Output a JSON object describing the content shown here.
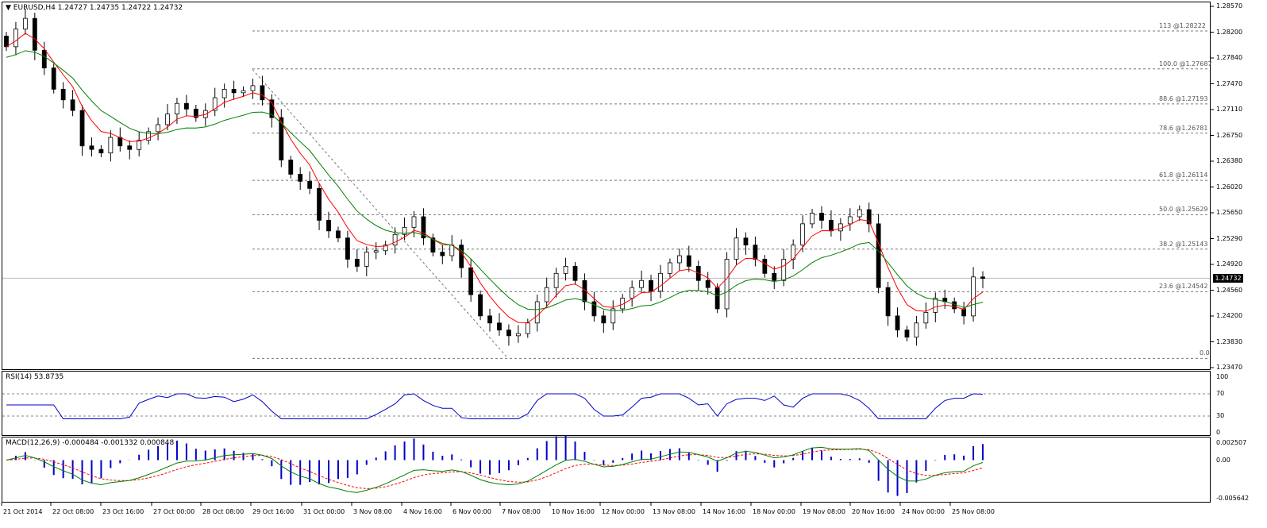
{
  "main": {
    "title": "EURUSD,H4",
    "ohlc": "1.24727 1.24735 1.24722 1.24732",
    "current_price": "1.24732",
    "y_ticks": [
      "1.28570",
      "1.28200",
      "1.27840",
      "1.27470",
      "1.27110",
      "1.26750",
      "1.26380",
      "1.26020",
      "1.25650",
      "1.25290",
      "1.24920",
      "1.24560",
      "1.24200",
      "1.23830",
      "1.23470"
    ],
    "fib_levels": [
      {
        "ratio": "113",
        "price": "@1.28222"
      },
      {
        "ratio": "100.0",
        "price": "@1.27687"
      },
      {
        "ratio": "88.6",
        "price": "@1.27193"
      },
      {
        "ratio": "78.6",
        "price": "@1.26781"
      },
      {
        "ratio": "61.8",
        "price": "@1.26114"
      },
      {
        "ratio": "50.0",
        "price": "@1.25629"
      },
      {
        "ratio": "38.2",
        "price": "@1.25143"
      },
      {
        "ratio": "23.6",
        "price": "@1.24542"
      },
      {
        "ratio": "0.0",
        "price": ""
      }
    ]
  },
  "rsi": {
    "label": "RSI(14) 53.8735",
    "y_ticks": [
      "100",
      "70",
      "30",
      "0"
    ]
  },
  "macd": {
    "label": "MACD(12,26,9) -0.000484 -0.001332 0.000848",
    "y_ticks": [
      "0.002507",
      "0.00",
      "-0.005642"
    ]
  },
  "x_axis": [
    "21 Oct 2014",
    "22 Oct 08:00",
    "23 Oct 16:00",
    "27 Oct 00:00",
    "28 Oct 08:00",
    "29 Oct 16:00",
    "31 Oct 00:00",
    "3 Nov 08:00",
    "4 Nov 16:00",
    "6 Nov 00:00",
    "7 Nov 08:00",
    "10 Nov 16:00",
    "12 Nov 00:00",
    "13 Nov 08:00",
    "14 Nov 16:00",
    "18 Nov 00:00",
    "19 Nov 08:00",
    "20 Nov 16:00",
    "24 Nov 00:00",
    "25 Nov 08:00"
  ],
  "colors": {
    "bull_candle": "#ffffff",
    "bear_candle": "#000000",
    "ma_fast": "#ff0000",
    "ma_slow": "#008000",
    "rsi_line": "#0000c8",
    "macd_hist": "#0000c8",
    "macd_signal": "#ff0000",
    "macd_line": "#008000",
    "grid": "#000000"
  },
  "chart_data": {
    "type": "candlestick",
    "symbol": "EURUSD",
    "timeframe": "H4",
    "close_values": [
      1.28,
      1.2825,
      1.284,
      1.2795,
      1.277,
      1.274,
      1.2725,
      1.271,
      1.266,
      1.2655,
      1.265,
      1.2672,
      1.266,
      1.2655,
      1.2668,
      1.268,
      1.269,
      1.2705,
      1.272,
      1.2712,
      1.27,
      1.271,
      1.2728,
      1.274,
      1.2735,
      1.2738,
      1.2745,
      1.2725,
      1.27,
      1.264,
      1.262,
      1.261,
      1.26,
      1.2555,
      1.254,
      1.253,
      1.25,
      1.249,
      1.251,
      1.2512,
      1.252,
      1.2535,
      1.2545,
      1.256,
      1.253,
      1.251,
      1.2505,
      1.252,
      1.2488,
      1.245,
      1.242,
      1.241,
      1.24,
      1.2392,
      1.2395,
      1.241,
      1.244,
      1.246,
      1.248,
      1.249,
      1.247,
      1.244,
      1.242,
      1.241,
      1.243,
      1.2445,
      1.246,
      1.247,
      1.2455,
      1.248,
      1.2495,
      1.2505,
      1.249,
      1.247,
      1.246,
      1.243,
      1.25,
      1.253,
      1.252,
      1.25,
      1.248,
      1.247,
      1.25,
      1.252,
      1.255,
      1.2565,
      1.2555,
      1.254,
      1.255,
      1.256,
      1.257,
      1.255,
      1.246,
      1.242,
      1.24,
      1.239,
      1.241,
      1.2425,
      1.2445,
      1.244,
      1.243,
      1.242,
      1.2475,
      1.2473
    ],
    "ylim": [
      1.2347,
      1.2857
    ]
  }
}
